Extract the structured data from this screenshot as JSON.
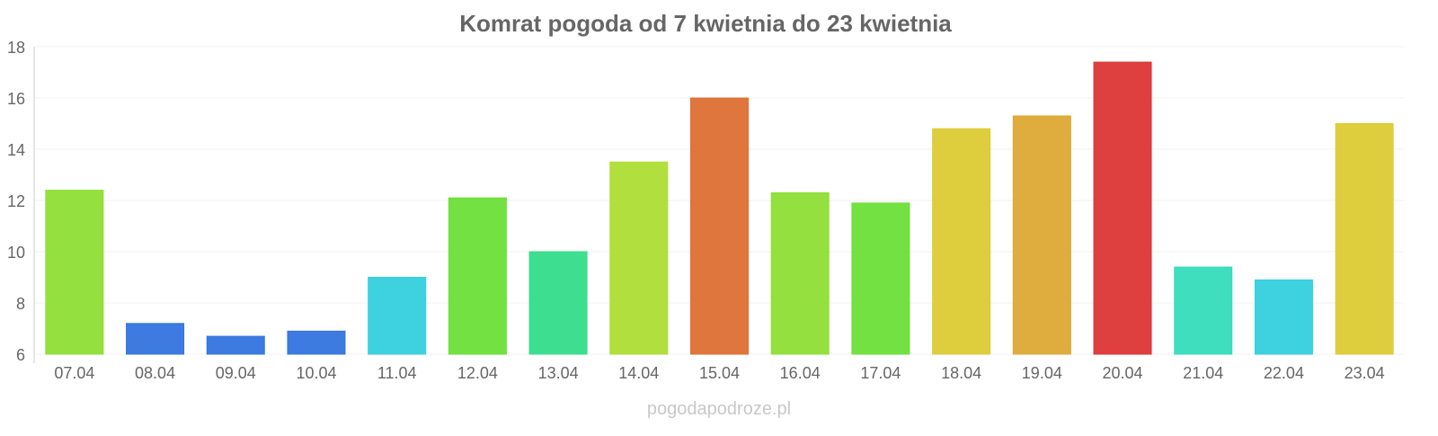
{
  "chart_data": {
    "type": "bar",
    "title": "Komrat pogoda od 7 kwietnia do 23 kwietnia",
    "xlabel": "",
    "ylabel": "",
    "ylim": [
      6,
      18
    ],
    "yticks": [
      6,
      8,
      10,
      12,
      14,
      16,
      18
    ],
    "grid": true,
    "categories": [
      "07.04",
      "08.04",
      "09.04",
      "10.04",
      "11.04",
      "12.04",
      "13.04",
      "14.04",
      "15.04",
      "16.04",
      "17.04",
      "18.04",
      "19.04",
      "20.04",
      "21.04",
      "22.04",
      "23.04"
    ],
    "values": [
      12.4,
      7.2,
      6.7,
      6.9,
      9.0,
      12.1,
      10.0,
      13.5,
      16.0,
      12.3,
      11.9,
      14.8,
      15.3,
      17.4,
      9.4,
      8.9,
      15.0
    ],
    "colors": [
      "#8ede34",
      "#3474de",
      "#3474de",
      "#3474de",
      "#34cfde",
      "#6adf37",
      "#34dc8a",
      "#addd34",
      "#dd6f34",
      "#8ede34",
      "#6adf37",
      "#dccb34",
      "#dda834",
      "#dc3535",
      "#34dcbb",
      "#34cfde",
      "#dccb34"
    ]
  },
  "watermark": "pogodapodroze.pl"
}
